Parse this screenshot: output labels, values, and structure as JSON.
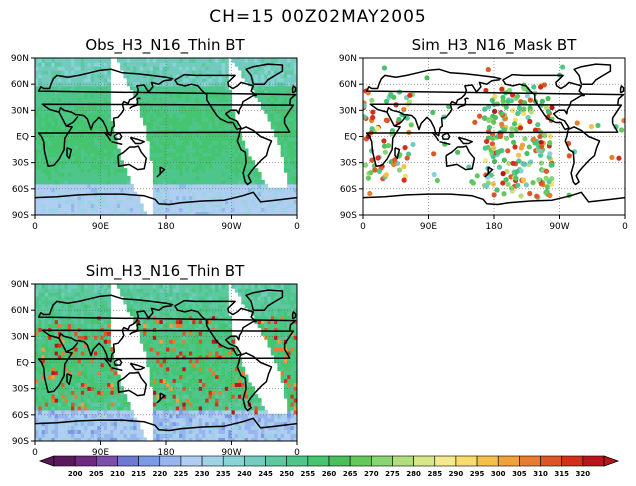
{
  "figure": {
    "title": "CH=15   00Z02MAY2005"
  },
  "palette": [
    "#5a1a5a",
    "#6e2a7e",
    "#7d4fa8",
    "#6f78d2",
    "#7a9ae6",
    "#98b6ee",
    "#b0cdf2",
    "#9fd2e4",
    "#87d3d6",
    "#72cbbd",
    "#5ec9a1",
    "#4ec68b",
    "#45c56f",
    "#49c05c",
    "#66c85a",
    "#8ad474",
    "#b1de7c",
    "#d6e78a",
    "#f3ea8d",
    "#f7dc6d",
    "#f4c04c",
    "#f0a13a",
    "#e77e2f",
    "#dd5626",
    "#d2301d",
    "#b8161a"
  ],
  "chart_data": [
    {
      "type": "heatmap",
      "title": "Obs_H3_N16_Thin BT",
      "x_ticks": [
        "0",
        "90E",
        "180",
        "90W",
        "0"
      ],
      "y_ticks": [
        "90N",
        "60N",
        "30N",
        "EQ",
        "30S",
        "60S",
        "90S"
      ],
      "xlim": [
        0,
        360
      ],
      "ylim": [
        -90,
        90
      ],
      "grid": true,
      "coverage": "swaths",
      "value_range": [
        235,
        260
      ]
    },
    {
      "type": "scatter",
      "title": "Sim_H3_N16_Mask BT",
      "x_ticks": [
        "0",
        "90E",
        "180",
        "90W",
        "0"
      ],
      "y_ticks": [
        "90N",
        "60N",
        "30N",
        "EQ",
        "30S",
        "60S",
        "90S"
      ],
      "xlim": [
        0,
        360
      ],
      "ylim": [
        -90,
        90
      ],
      "grid": true,
      "coverage": "sparse points",
      "value_range": [
        240,
        320
      ]
    },
    {
      "type": "heatmap",
      "title": "Sim_H3_N16_Thin BT",
      "x_ticks": [
        "0",
        "90E",
        "180",
        "90W",
        "0"
      ],
      "y_ticks": [
        "90N",
        "60N",
        "30N",
        "EQ",
        "30S",
        "60S",
        "90S"
      ],
      "xlim": [
        0,
        360
      ],
      "ylim": [
        -90,
        90
      ],
      "grid": true,
      "coverage": "swaths",
      "value_range": [
        210,
        320
      ]
    }
  ],
  "colorbar": {
    "labels": [
      "200",
      "205",
      "210",
      "215",
      "220",
      "225",
      "230",
      "235",
      "240",
      "245",
      "250",
      "255",
      "260",
      "265",
      "270",
      "275",
      "280",
      "285",
      "290",
      "295",
      "300",
      "305",
      "310",
      "315",
      "320"
    ]
  }
}
